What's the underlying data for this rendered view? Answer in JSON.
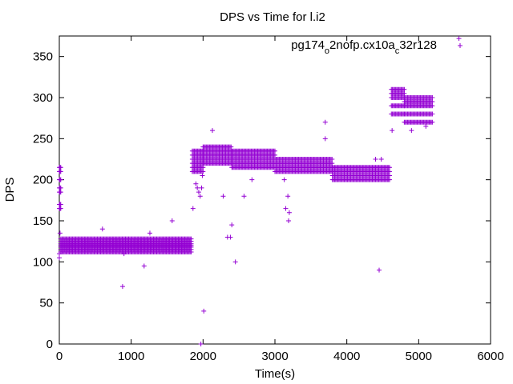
{
  "chart_data": {
    "type": "scatter",
    "title": "DPS vs Time for l.i2",
    "xlabel": "Time(s)",
    "ylabel": "DPS",
    "xlim": [
      0,
      6000
    ],
    "ylim": [
      0,
      375
    ],
    "xticks": [
      0,
      1000,
      2000,
      3000,
      4000,
      5000,
      6000
    ],
    "yticks": [
      0,
      50,
      100,
      150,
      200,
      250,
      300,
      350
    ],
    "grid": false,
    "legend_position": "top-right",
    "marker": "+",
    "color": "#9400d3",
    "series": [
      {
        "name_parts": [
          {
            "text": "pg174",
            "sub": false
          },
          {
            "text": "o",
            "sub": true
          },
          {
            "text": "2nofp.cx10a",
            "sub": false
          },
          {
            "text": "c",
            "sub": true
          },
          {
            "text": "32r128",
            "sub": false
          }
        ],
        "bands": [
          {
            "x_start": 0,
            "x_end": 20,
            "step": 10,
            "values": [
              165,
              170,
              185,
              190,
              200,
              210,
              215
            ]
          },
          {
            "x_start": 20,
            "x_end": 1840,
            "step": 15,
            "values": [
              112,
              115,
              118,
              120,
              122,
              125,
              128
            ]
          },
          {
            "x_start": 1850,
            "x_end": 2000,
            "step": 15,
            "values": [
              210,
              215,
              220,
              225,
              230,
              235
            ]
          },
          {
            "x_start": 2000,
            "x_end": 2400,
            "step": 15,
            "values": [
              220,
              225,
              230,
              235,
              240
            ]
          },
          {
            "x_start": 2400,
            "x_end": 3000,
            "step": 15,
            "values": [
              215,
              220,
              225,
              230,
              235
            ]
          },
          {
            "x_start": 3000,
            "x_end": 3800,
            "step": 15,
            "values": [
              210,
              215,
              220,
              225
            ]
          },
          {
            "x_start": 3800,
            "x_end": 4600,
            "step": 15,
            "values": [
              200,
              205,
              210,
              215
            ]
          },
          {
            "x_start": 4620,
            "x_end": 4800,
            "step": 15,
            "values": [
              280,
              290,
              300,
              305,
              310
            ]
          },
          {
            "x_start": 4800,
            "x_end": 5200,
            "step": 15,
            "values": [
              270,
              280,
              290,
              295,
              300
            ]
          }
        ],
        "points": [
          [
            0,
            105
          ],
          [
            0,
            110
          ],
          [
            10,
            135
          ],
          [
            600,
            140
          ],
          [
            880,
            70
          ],
          [
            900,
            110
          ],
          [
            1180,
            95
          ],
          [
            1260,
            135
          ],
          [
            1570,
            150
          ],
          [
            1860,
            165
          ],
          [
            1900,
            195
          ],
          [
            1920,
            190
          ],
          [
            1940,
            185
          ],
          [
            1960,
            180
          ],
          [
            1980,
            190
          ],
          [
            1990,
            205
          ],
          [
            1970,
            0
          ],
          [
            2010,
            40
          ],
          [
            2130,
            260
          ],
          [
            2280,
            180
          ],
          [
            2340,
            130
          ],
          [
            2380,
            130
          ],
          [
            2400,
            145
          ],
          [
            2450,
            100
          ],
          [
            2570,
            180
          ],
          [
            2680,
            200
          ],
          [
            3130,
            200
          ],
          [
            3150,
            165
          ],
          [
            3180,
            180
          ],
          [
            3190,
            150
          ],
          [
            3200,
            160
          ],
          [
            3700,
            270
          ],
          [
            3700,
            250
          ],
          [
            4400,
            225
          ],
          [
            4450,
            90
          ],
          [
            4480,
            225
          ],
          [
            4630,
            260
          ],
          [
            4900,
            260
          ],
          [
            5100,
            265
          ],
          [
            5560,
            372
          ]
        ]
      }
    ]
  }
}
